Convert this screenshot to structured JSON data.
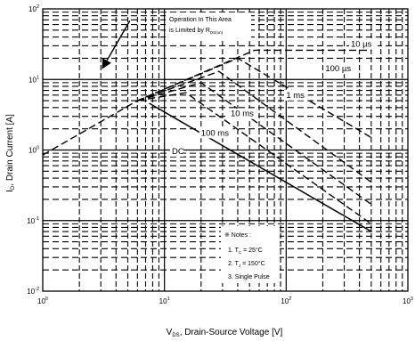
{
  "chart_data": {
    "type": "line",
    "scale": {
      "x": "log",
      "y": "log"
    },
    "xlim": [
      1,
      1000
    ],
    "ylim": [
      0.01,
      100
    ],
    "grid": true,
    "x_ticks": [
      {
        "base": "10",
        "exp": "0"
      },
      {
        "base": "10",
        "exp": "1"
      },
      {
        "base": "10",
        "exp": "2"
      },
      {
        "base": "10",
        "exp": "3"
      }
    ],
    "y_ticks": [
      {
        "base": "10",
        "exp": "-2"
      },
      {
        "base": "10",
        "exp": "-1"
      },
      {
        "base": "10",
        "exp": "0"
      },
      {
        "base": "10",
        "exp": "1"
      },
      {
        "base": "10",
        "exp": "2"
      }
    ],
    "xlabel": {
      "main": "V",
      "sub": "DS",
      "rest": ", Drain-Source Voltage [V]"
    },
    "ylabel": {
      "main": "I",
      "sub": "D",
      "rest": ", Drain Current [A]"
    },
    "limit_annotation": {
      "line1": "Operation In This Area",
      "line2_main": "is Limited by R",
      "line2_sub": "DS(on)",
      "arrow_from": [
        5.2,
        68
      ],
      "arrow_to": [
        3.1,
        14.5
      ]
    },
    "notes": {
      "title": "※ Notes :",
      "lines": [
        {
          "pre": "1. T",
          "sub": "C",
          "post": " = 25°C"
        },
        {
          "pre": "2. T",
          "sub": "J",
          "post": " = 150°C"
        },
        {
          "pre": "3. Single Pulse",
          "sub": "",
          "post": ""
        }
      ]
    },
    "series": [
      {
        "name": "10 µs",
        "dashed": true,
        "x": [
          1,
          6,
          55,
          120,
          500
        ],
        "y": [
          0.85,
          5.0,
          26,
          26,
          26
        ],
        "label_at": [
          340,
          29
        ]
      },
      {
        "name": "100 µs",
        "dashed": true,
        "x": [
          6,
          40,
          500
        ],
        "y": [
          5.0,
          20,
          1.5
        ],
        "label_at": [
          210,
          13
        ]
      },
      {
        "name": "1 ms",
        "dashed": true,
        "x": [
          6,
          28,
          500
        ],
        "y": [
          5.0,
          13,
          0.35
        ],
        "label_at": [
          100,
          5.5
        ]
      },
      {
        "name": "10 ms",
        "dashed": true,
        "x": [
          6,
          20,
          500
        ],
        "y": [
          5.0,
          9,
          0.17
        ],
        "label_at": [
          35,
          3.0
        ]
      },
      {
        "name": "100 ms",
        "dashed": true,
        "x": [
          6,
          15,
          500
        ],
        "y": [
          5.0,
          6.5,
          0.09
        ],
        "label_at": [
          20,
          1.6
        ]
      },
      {
        "name": "DC",
        "dashed": false,
        "x": [
          7.5,
          500
        ],
        "y": [
          4.6,
          0.07
        ],
        "label_at": [
          11.5,
          0.88
        ]
      }
    ]
  }
}
